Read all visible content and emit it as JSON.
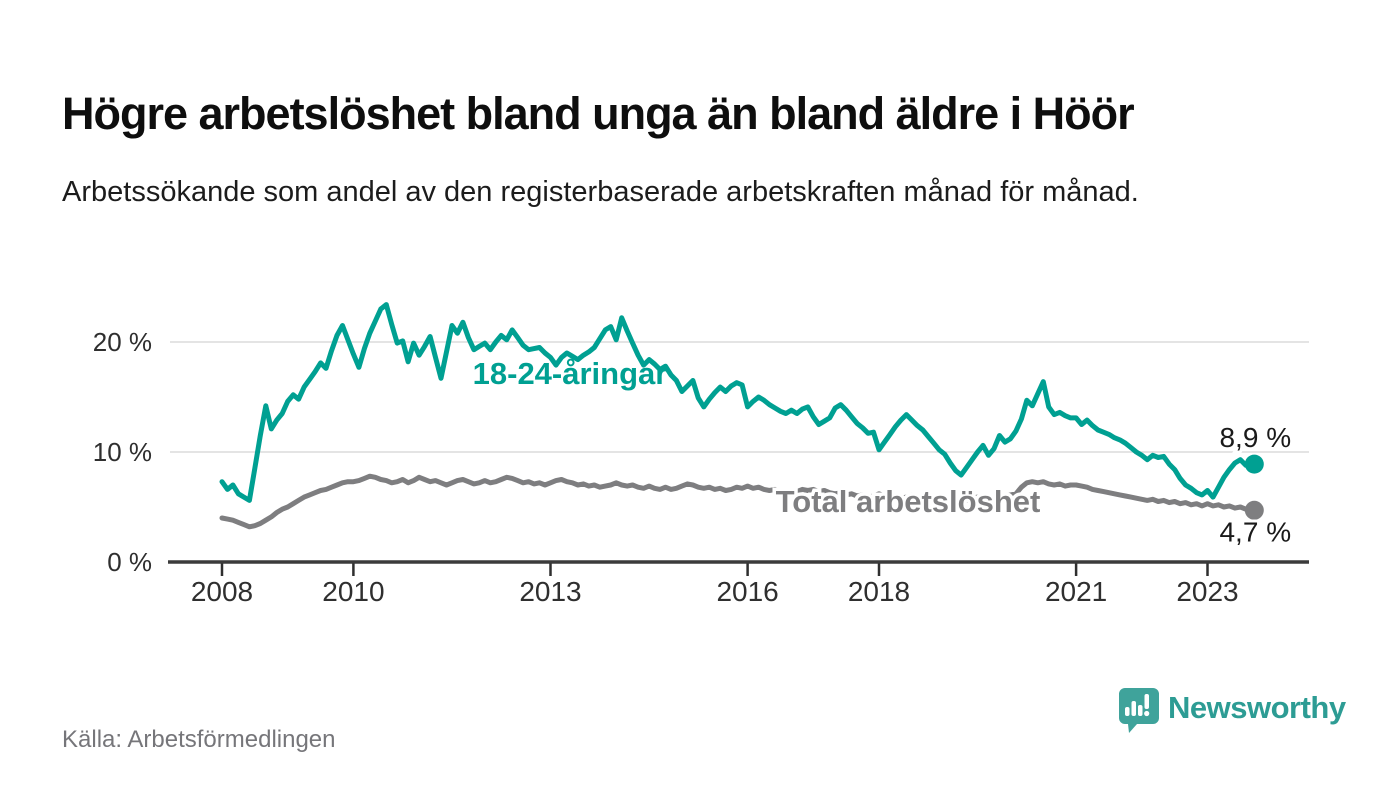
{
  "header": {
    "title": "Högre arbetslöshet bland unga än bland äldre i Höör",
    "subtitle": "Arbetssökande som andel av den registerbaserade arbetskraften månad för månad."
  },
  "footer": {
    "source": "Källa: Arbetsförmedlingen",
    "logo_text": "Newsworthy",
    "logo_color": "#3fa39b",
    "logo_text_color": "#2d9c94"
  },
  "chart_data": {
    "type": "line",
    "title": "Högre arbetslöshet bland unga än bland äldre i Höör",
    "xlabel": "",
    "ylabel": "",
    "x_start": "2008-01",
    "frequency": "monthly",
    "ylim": [
      0,
      24
    ],
    "grid": "horizontal",
    "legend_position": "inline-labels",
    "yticks": [
      {
        "value": 0,
        "label": "0 %"
      },
      {
        "value": 10,
        "label": "10 %"
      },
      {
        "value": 20,
        "label": "20 %"
      }
    ],
    "xticks": [
      {
        "year": 2008,
        "label": "2008"
      },
      {
        "year": 2010,
        "label": "2010"
      },
      {
        "year": 2013,
        "label": "2013"
      },
      {
        "year": 2016,
        "label": "2016"
      },
      {
        "year": 2018,
        "label": "2018"
      },
      {
        "year": 2021,
        "label": "2021"
      },
      {
        "year": 2023,
        "label": "2023"
      }
    ],
    "series": [
      {
        "name": "18-24-åringar",
        "color": "#00a092",
        "end_label": "8,9 %",
        "values": [
          7.3,
          6.6,
          7.0,
          6.2,
          5.9,
          5.6,
          8.5,
          11.5,
          14.2,
          12.1,
          12.9,
          13.5,
          14.6,
          15.2,
          14.8,
          15.9,
          16.6,
          17.3,
          18.1,
          17.6,
          19.2,
          20.6,
          21.5,
          20.2,
          18.9,
          17.7,
          19.4,
          20.8,
          21.9,
          23.0,
          23.4,
          21.6,
          19.9,
          20.1,
          18.2,
          19.9,
          18.8,
          19.6,
          20.5,
          18.6,
          16.7,
          19.1,
          21.5,
          20.8,
          21.8,
          20.4,
          19.3,
          19.6,
          19.9,
          19.3,
          20.0,
          20.6,
          20.2,
          21.1,
          20.4,
          19.7,
          19.3,
          19.4,
          19.5,
          19.0,
          18.6,
          17.9,
          18.6,
          19.0,
          18.7,
          18.4,
          18.8,
          19.1,
          19.5,
          20.3,
          21.1,
          21.4,
          20.2,
          22.2,
          21.0,
          19.9,
          18.8,
          17.9,
          18.4,
          18.0,
          17.5,
          17.8,
          17.0,
          16.5,
          15.5,
          16.0,
          16.5,
          14.9,
          14.1,
          14.8,
          15.4,
          15.9,
          15.5,
          16.0,
          16.3,
          16.1,
          14.1,
          14.6,
          15.0,
          14.7,
          14.3,
          14.0,
          13.7,
          13.5,
          13.8,
          13.5,
          13.9,
          14.1,
          13.2,
          12.5,
          12.8,
          13.1,
          14.0,
          14.3,
          13.8,
          13.2,
          12.6,
          12.2,
          11.7,
          11.8,
          10.2,
          10.9,
          11.6,
          12.3,
          12.9,
          13.4,
          12.9,
          12.4,
          12.0,
          11.4,
          10.8,
          10.2,
          9.8,
          9.0,
          8.3,
          7.9,
          8.6,
          9.3,
          10.0,
          10.6,
          9.7,
          10.3,
          11.5,
          10.9,
          11.2,
          11.9,
          13.0,
          14.7,
          14.2,
          15.3,
          16.4,
          14.1,
          13.4,
          13.6,
          13.3,
          13.1,
          13.1,
          12.5,
          12.9,
          12.4,
          12.0,
          11.8,
          11.6,
          11.3,
          11.1,
          10.8,
          10.4,
          10.0,
          9.7,
          9.3,
          9.7,
          9.5,
          9.6,
          8.9,
          8.4,
          7.6,
          7.0,
          6.7,
          6.3,
          6.1,
          6.5,
          5.9,
          6.8,
          7.7,
          8.4,
          9.0,
          9.3,
          8.8,
          8.9
        ]
      },
      {
        "name": "Total arbetslöshet",
        "color": "#7e7e80",
        "end_label": "4,7 %",
        "values": [
          4.0,
          3.9,
          3.8,
          3.6,
          3.4,
          3.2,
          3.3,
          3.5,
          3.8,
          4.1,
          4.5,
          4.8,
          5.0,
          5.3,
          5.6,
          5.9,
          6.1,
          6.3,
          6.5,
          6.6,
          6.8,
          7.0,
          7.2,
          7.3,
          7.3,
          7.4,
          7.6,
          7.8,
          7.7,
          7.5,
          7.4,
          7.2,
          7.3,
          7.5,
          7.2,
          7.4,
          7.7,
          7.5,
          7.3,
          7.4,
          7.2,
          7.0,
          7.2,
          7.4,
          7.5,
          7.3,
          7.1,
          7.2,
          7.4,
          7.2,
          7.3,
          7.5,
          7.7,
          7.6,
          7.4,
          7.2,
          7.3,
          7.1,
          7.2,
          7.0,
          7.2,
          7.4,
          7.5,
          7.3,
          7.2,
          7.0,
          7.1,
          6.9,
          7.0,
          6.8,
          6.9,
          7.0,
          7.2,
          7.0,
          6.9,
          7.0,
          6.8,
          6.7,
          6.9,
          6.7,
          6.6,
          6.8,
          6.6,
          6.7,
          6.9,
          7.1,
          7.0,
          6.8,
          6.7,
          6.8,
          6.6,
          6.7,
          6.5,
          6.6,
          6.8,
          6.7,
          6.9,
          6.7,
          6.8,
          6.6,
          6.5,
          6.6,
          6.4,
          6.5,
          6.3,
          6.4,
          6.6,
          6.5,
          6.6,
          6.4,
          6.5,
          6.3,
          6.2,
          6.3,
          6.1,
          6.2,
          6.0,
          6.1,
          5.9,
          6.0,
          6.2,
          6.0,
          6.1,
          5.9,
          5.8,
          5.9,
          6.1,
          5.9,
          5.8,
          5.7,
          5.8,
          5.6,
          5.8,
          5.6,
          5.7,
          5.5,
          5.6,
          5.8,
          5.9,
          6.0,
          5.8,
          5.9,
          6.1,
          6.0,
          6.1,
          6.2,
          6.8,
          7.2,
          7.3,
          7.2,
          7.3,
          7.1,
          7.0,
          7.1,
          6.9,
          7.0,
          7.0,
          6.9,
          6.8,
          6.6,
          6.5,
          6.4,
          6.3,
          6.2,
          6.1,
          6.0,
          5.9,
          5.8,
          5.7,
          5.6,
          5.7,
          5.5,
          5.6,
          5.4,
          5.5,
          5.3,
          5.4,
          5.2,
          5.3,
          5.1,
          5.3,
          5.1,
          5.2,
          5.0,
          5.1,
          4.9,
          5.0,
          4.8,
          4.7
        ]
      }
    ],
    "colors": {
      "grid": "#dbdbdb",
      "axis": "#3b3b3b",
      "tick_text": "#2f2f2f",
      "value_label_text": "#1a1a1a"
    }
  }
}
